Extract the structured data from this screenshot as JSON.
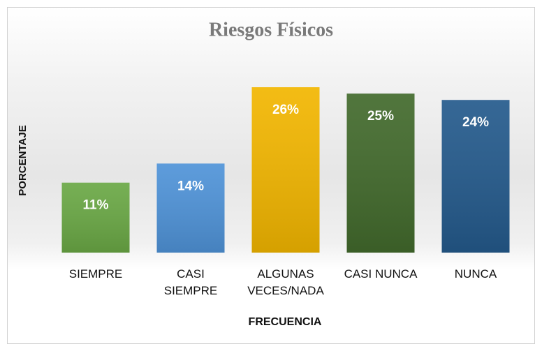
{
  "chart_data": {
    "type": "bar",
    "title": "Riesgos Físicos",
    "x_label": "FRECUENCIA",
    "y_label": "PORCENTAJE",
    "categories": [
      "SIEMPRE",
      "CASI SIEMPRE",
      "ALGUNAS VECES/NADA",
      "CASI NUNCA",
      "NUNCA"
    ],
    "values": [
      11,
      14,
      26,
      25,
      24
    ],
    "value_labels": [
      "11%",
      "14%",
      "26%",
      "25%",
      "24%"
    ],
    "colors": [
      "#6aa845",
      "#4f93d8",
      "#f2b600",
      "#426a2c",
      "#245a8c"
    ]
  }
}
